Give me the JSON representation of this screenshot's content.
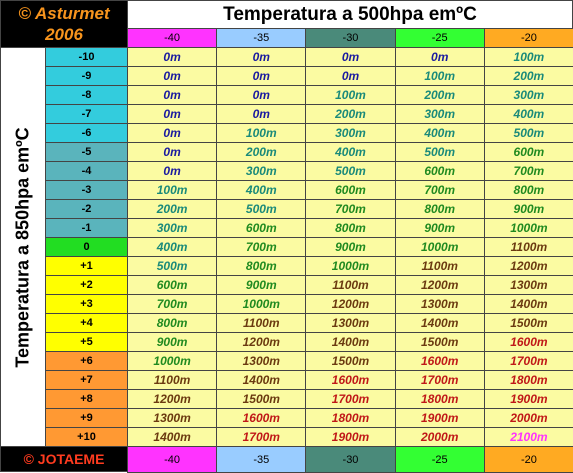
{
  "corner": {
    "title": "© Asturmet",
    "year": "2006"
  },
  "header": {
    "title": "Temperatura a 500hpa emºC",
    "columns": [
      "-40",
      "-35",
      "-30",
      "-25",
      "-20"
    ]
  },
  "side_label": "Temperatura a 850hpa emºC",
  "rows": [
    {
      "label": "-10",
      "cells": [
        "0m",
        "0m",
        "0m",
        "0m",
        "100m"
      ]
    },
    {
      "label": "-9",
      "cells": [
        "0m",
        "0m",
        "0m",
        "100m",
        "200m"
      ]
    },
    {
      "label": "-8",
      "cells": [
        "0m",
        "0m",
        "100m",
        "200m",
        "300m"
      ]
    },
    {
      "label": "-7",
      "cells": [
        "0m",
        "0m",
        "200m",
        "300m",
        "400m"
      ]
    },
    {
      "label": "-6",
      "cells": [
        "0m",
        "100m",
        "300m",
        "400m",
        "500m"
      ]
    },
    {
      "label": "-5",
      "cells": [
        "0m",
        "200m",
        "400m",
        "500m",
        "600m"
      ]
    },
    {
      "label": "-4",
      "cells": [
        "0m",
        "300m",
        "500m",
        "600m",
        "700m"
      ]
    },
    {
      "label": "-3",
      "cells": [
        "100m",
        "400m",
        "600m",
        "700m",
        "800m"
      ]
    },
    {
      "label": "-2",
      "cells": [
        "200m",
        "500m",
        "700m",
        "800m",
        "900m"
      ]
    },
    {
      "label": "-1",
      "cells": [
        "300m",
        "600m",
        "800m",
        "900m",
        "1000m"
      ]
    },
    {
      "label": "0",
      "cells": [
        "400m",
        "700m",
        "900m",
        "1000m",
        "1100m"
      ]
    },
    {
      "label": "+1",
      "cells": [
        "500m",
        "800m",
        "1000m",
        "1100m",
        "1200m"
      ]
    },
    {
      "label": "+2",
      "cells": [
        "600m",
        "900m",
        "1100m",
        "1200m",
        "1300m"
      ]
    },
    {
      "label": "+3",
      "cells": [
        "700m",
        "1000m",
        "1200m",
        "1300m",
        "1400m"
      ]
    },
    {
      "label": "+4",
      "cells": [
        "800m",
        "1100m",
        "1300m",
        "1400m",
        "1500m"
      ]
    },
    {
      "label": "+5",
      "cells": [
        "900m",
        "1200m",
        "1400m",
        "1500m",
        "1600m"
      ]
    },
    {
      "label": "+6",
      "cells": [
        "1000m",
        "1300m",
        "1500m",
        "1600m",
        "1700m"
      ]
    },
    {
      "label": "+7",
      "cells": [
        "1100m",
        "1400m",
        "1600m",
        "1700m",
        "1800m"
      ]
    },
    {
      "label": "+8",
      "cells": [
        "1200m",
        "1500m",
        "1700m",
        "1800m",
        "1900m"
      ]
    },
    {
      "label": "+9",
      "cells": [
        "1300m",
        "1600m",
        "1800m",
        "1900m",
        "2000m"
      ]
    },
    {
      "label": "+10",
      "cells": [
        "1400m",
        "1700m",
        "1900m",
        "2000m",
        "2100m"
      ]
    }
  ],
  "footer": {
    "credit": "© JOTAEME"
  }
}
